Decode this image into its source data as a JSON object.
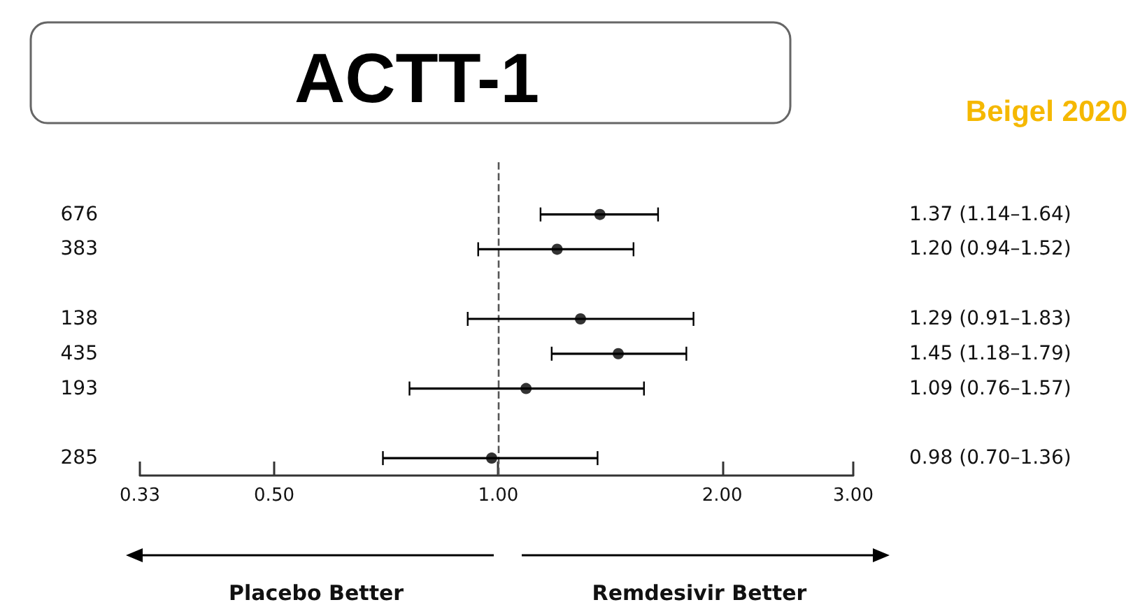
{
  "chart_data": {
    "type": "scatter",
    "orientation": "horizontal",
    "title": "ACTT-1",
    "categories": [
      null,
      "676",
      "383",
      null,
      "138",
      "435",
      "193",
      null,
      "285"
    ],
    "values": [
      null,
      1.37,
      1.2,
      null,
      1.29,
      1.45,
      1.09,
      null,
      0.98
    ],
    "errors": [
      null,
      [
        1.14,
        1.64
      ],
      [
        0.94,
        1.52
      ],
      null,
      [
        0.91,
        1.83
      ],
      [
        1.18,
        1.79
      ],
      [
        0.76,
        1.57
      ],
      null,
      [
        0.7,
        1.36
      ]
    ],
    "value_labels": [
      null,
      "1.37 (1.14–1.64)",
      "1.20 (0.94–1.52)",
      null,
      "1.29 (0.91–1.83)",
      "1.45 (1.18–1.79)",
      "1.09 (0.76–1.57)",
      null,
      "0.98 (0.70–1.36)"
    ],
    "color": "#000000",
    "marker": "circle",
    "log": "x",
    "grid": false,
    "legend": false,
    "xlim": [
      0.33,
      3.0
    ],
    "xticks": [
      {
        "value": 0.33,
        "label": "0.33"
      },
      {
        "value": 0.5,
        "label": "0.50"
      },
      {
        "value": 1,
        "label": "1.00"
      },
      {
        "value": 2,
        "label": "2.00"
      },
      {
        "value": 3,
        "label": "3.00"
      }
    ],
    "ref_lines": [
      {
        "axis": "x",
        "value": 1,
        "line_style": "dashed",
        "color": "#555555"
      }
    ],
    "annotations": [
      "Placebo Better",
      "Remdesivir Better",
      "Beigel 2020"
    ]
  }
}
